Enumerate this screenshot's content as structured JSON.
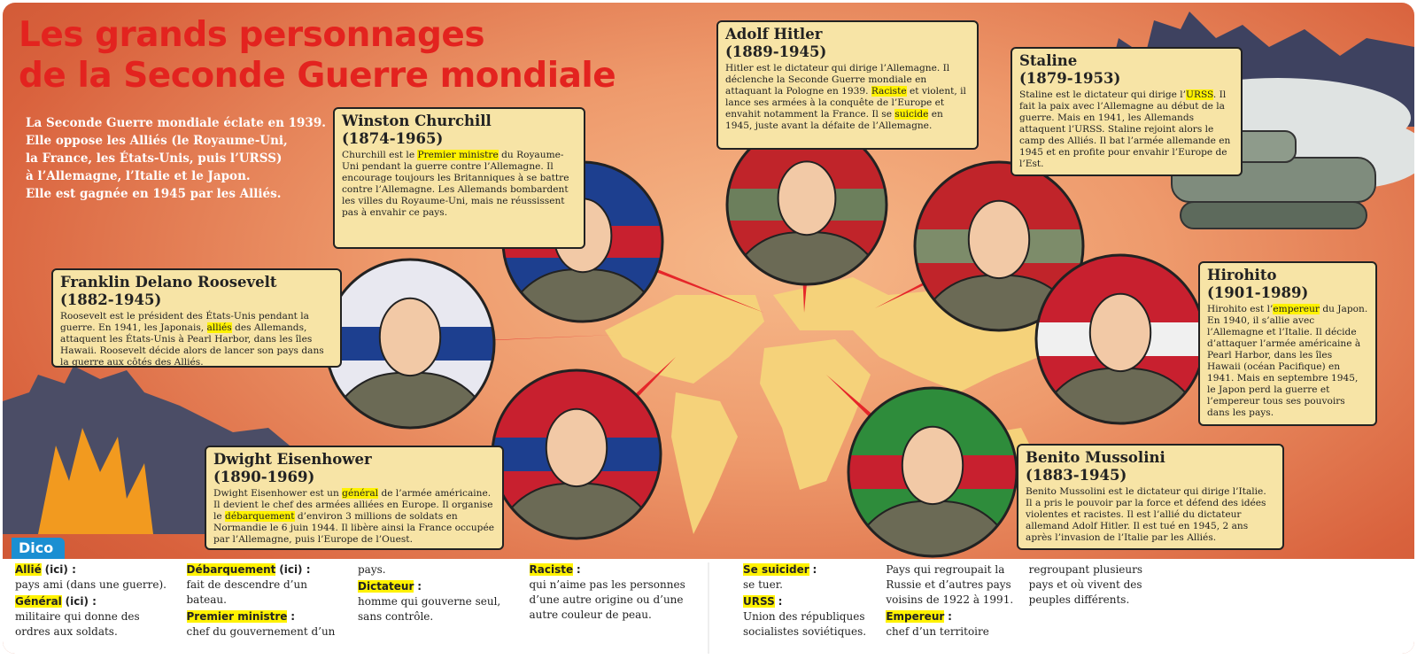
{
  "header": {
    "title_lines": [
      "Les grands personnages",
      "de la Seconde Guerre mondiale"
    ],
    "intro": [
      "La Seconde Guerre mondiale éclate en 1939.",
      "Elle oppose les Alliés (le Royaume-Uni,",
      "la France, les États-Unis, puis l’URSS)",
      "à l’Allemagne, l’Italie et le Japon.",
      "Elle est gagnée en 1945 par les Alliés."
    ]
  },
  "people": [
    {
      "name": "Winston Churchill",
      "dates": "(1874-1965)",
      "segments": [
        {
          "text": "Churchill est le "
        },
        {
          "highlight": "Premier ministre"
        },
        {
          "text": " du Royaume-Uni pendant la guerre contre l’Allemagne. Il encourage toujours les Britanniques à se battre contre l’Allemagne. Les Allemands bombardent les villes du Royaume-Uni, mais ne réussissent pas à envahir ce pays."
        }
      ]
    },
    {
      "name": "Franklin Delano Roosevelt",
      "dates": "(1882-1945)",
      "segments": [
        {
          "text": "Roosevelt est le président des États-Unis pendant la guerre. En 1941, les Japonais, "
        },
        {
          "highlight": "alliés"
        },
        {
          "text": " des Allemands, attaquent les États-Unis à Pearl Harbor, dans les îles Hawaii. Roosevelt décide alors de lancer son pays dans la guerre aux côtés des Alliés."
        }
      ]
    },
    {
      "name": "Dwight Eisenhower",
      "dates": "(1890-1969)",
      "segments": [
        {
          "text": "Dwight Eisenhower est un "
        },
        {
          "highlight": "général"
        },
        {
          "text": " de l’armée américaine. Il devient le chef des armées alliées en Europe. Il organise le "
        },
        {
          "highlight": "débarquement"
        },
        {
          "text": " d’environ 3 millions de soldats en Normandie le 6 juin 1944. Il libère ainsi la France occupée par l’Allemagne, puis l’Europe de l’Ouest."
        }
      ]
    },
    {
      "name": "Adolf Hitler",
      "dates": "(1889-1945)",
      "segments": [
        {
          "text": "Hitler est le dictateur qui dirige l’Allemagne. Il déclenche la Seconde Guerre mondiale en attaquant la Pologne en 1939. "
        },
        {
          "highlight": "Raciste"
        },
        {
          "text": " et violent, il lance ses armées à la conquête de l’Europe et envahit notamment la France. Il se "
        },
        {
          "highlight": "suicide"
        },
        {
          "text": " en 1945, juste avant la défaite de l’Allemagne."
        }
      ]
    },
    {
      "name": "Staline",
      "dates": "(1879-1953)",
      "segments": [
        {
          "text": "Staline est le dictateur qui dirige l’"
        },
        {
          "highlight": "URSS"
        },
        {
          "text": ". Il fait la paix avec l’Allemagne au début de la guerre. Mais en 1941, les Allemands attaquent l’URSS. Staline rejoint alors le camp des Alliés. Il bat l’armée allemande en 1945 et en profite pour envahir l’Europe de l’Est."
        }
      ]
    },
    {
      "name": "Hirohito",
      "dates": "(1901-1989)",
      "segments": [
        {
          "text": "Hirohito est l’"
        },
        {
          "highlight": "empereur"
        },
        {
          "text": " du Japon. En 1940, il s’allie avec l’Allemagne et l’Italie. Il décide d’attaquer l’armée américaine à Pearl Harbor, dans les îles Hawaii (océan Pacifique) en 1941. Mais en septembre 1945, le Japon perd la guerre et l’empereur tous ses pouvoirs dans les pays."
        }
      ]
    },
    {
      "name": "Benito Mussolini",
      "dates": "(1883-1945)",
      "segments": [
        {
          "text": "Benito Mussolini est le dictateur qui dirige l’Italie. Il a pris le pouvoir par la force et défend des idées violentes et racistes. Il est l’allié du dictateur allemand Adolf Hitler. Il est tué en 1945, 2 ans après l’invasion de l’Italie par les Alliés."
        }
      ]
    }
  ],
  "dico": {
    "label": "Dico",
    "left": [
      {
        "term": "Allié",
        "suffix": "(ici) :",
        "definition": "pays ami (dans une guerre)."
      },
      {
        "term": "Général",
        "suffix": "(ici) :",
        "definition": "militaire qui donne des ordres aux soldats."
      },
      {
        "term": "Débarquement",
        "suffix": "(ici) :",
        "definition": "fait de descendre d’un bateau."
      },
      {
        "term": "Premier ministre",
        "suffix": ":",
        "definition": "chef du gouvernement d’un pays."
      },
      {
        "term": "Dictateur",
        "suffix": ":",
        "definition": "homme qui gouverne seul, sans contrôle."
      },
      {
        "term": "Raciste",
        "suffix": ":",
        "definition": "qui n’aime pas les personnes d’une autre origine ou d’une autre couleur de peau."
      }
    ],
    "right": [
      {
        "term": "Se suicider",
        "suffix": ":",
        "definition": "se tuer."
      },
      {
        "term": "URSS",
        "suffix": ":",
        "definition": "Union des républiques socialistes soviétiques. Pays qui regroupait la Russie et d’autres pays voisins de 1922 à 1991."
      },
      {
        "term": "Empereur",
        "suffix": ":",
        "definition": "chef d’un territoire regroupant plusieurs pays et où vivent des peuples différents."
      }
    ]
  }
}
